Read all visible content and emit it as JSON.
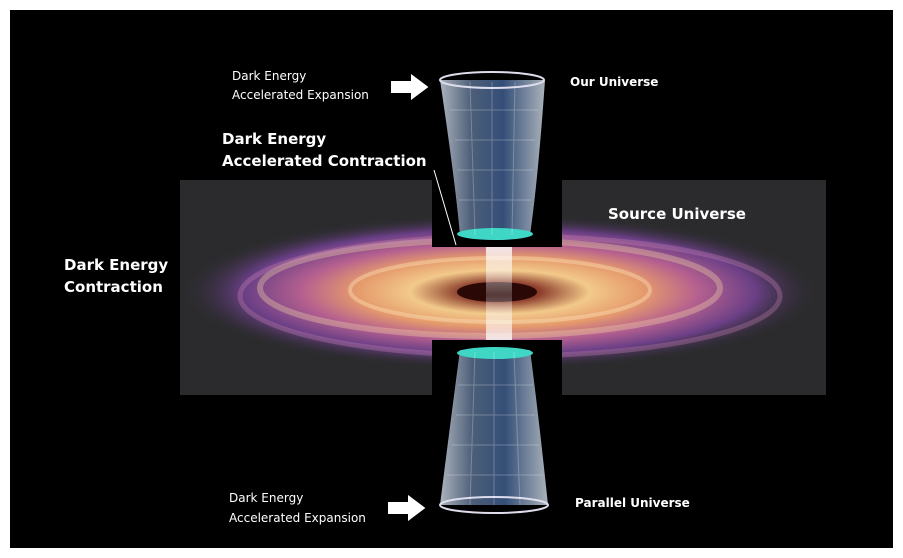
{
  "labels": [
    {
      "lines": [
        "Dark Energy",
        "Accelerated Expansion"
      ]
    },
    {
      "lines": [
        "Our Universe"
      ]
    },
    {
      "lines": [
        "Dark Energy",
        "Accelerated Contraction"
      ]
    },
    {
      "lines": [
        "Source Universe"
      ]
    },
    {
      "lines": [
        "Dark Energy",
        "Contraction"
      ]
    },
    {
      "lines": [
        "Dark Energy",
        "Accelerated Expansion"
      ]
    },
    {
      "lines": [
        "Parallel Universe"
      ]
    }
  ]
}
